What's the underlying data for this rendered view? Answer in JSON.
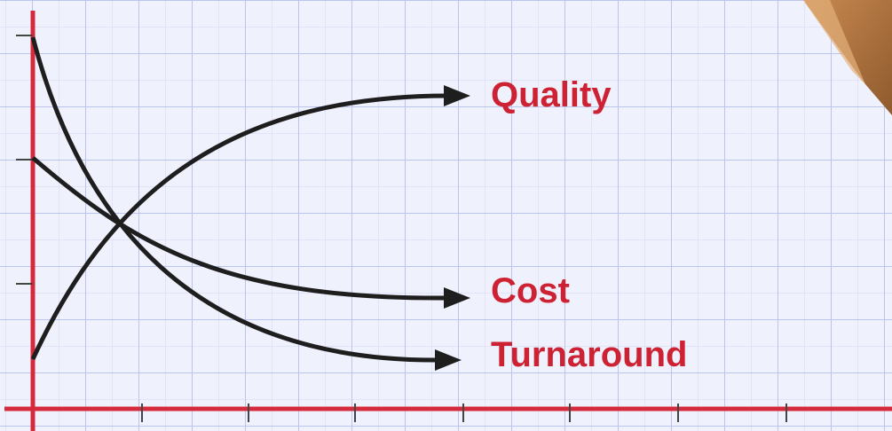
{
  "curves": [
    {
      "label": "Quality"
    },
    {
      "label": "Cost"
    },
    {
      "label": "Turnaround"
    }
  ]
}
